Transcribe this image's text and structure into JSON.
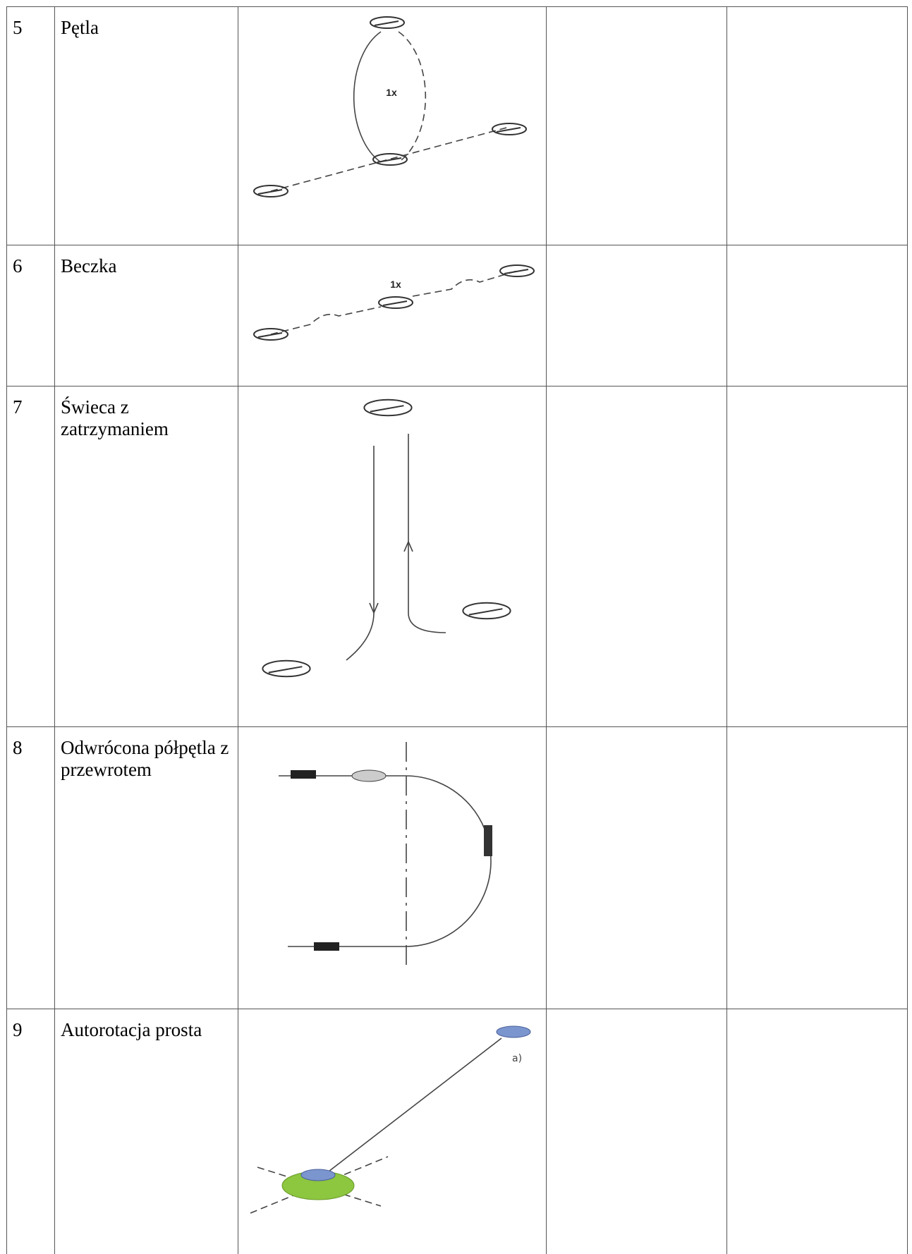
{
  "table": {
    "rows": [
      {
        "number": "5",
        "name": "Pętla",
        "diagram_label": "1x"
      },
      {
        "number": "6",
        "name": "Beczka",
        "diagram_label": "1x"
      },
      {
        "number": "7",
        "name": "Świeca z zatrzymaniem"
      },
      {
        "number": "8",
        "name": "Odwrócona półpętla z przewrotem"
      },
      {
        "number": "9",
        "name": "Autorotacja prosta",
        "diagram_label": "a)"
      }
    ]
  }
}
